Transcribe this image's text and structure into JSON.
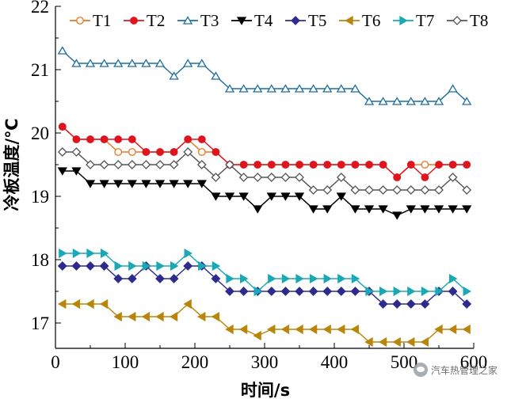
{
  "chart_data": {
    "type": "line",
    "title": "",
    "xlabel": "时间/s",
    "ylabel": "冷板温度/℃",
    "xlim": [
      0,
      600
    ],
    "ylim": [
      16.6,
      22
    ],
    "xticks": [
      0,
      100,
      200,
      300,
      400,
      500,
      600
    ],
    "yticks": [
      17,
      18,
      19,
      20,
      21,
      22
    ],
    "grid": false,
    "legend_position": "top",
    "x": [
      10,
      30,
      50,
      70,
      90,
      110,
      130,
      150,
      170,
      190,
      210,
      230,
      250,
      270,
      290,
      310,
      330,
      350,
      370,
      390,
      410,
      430,
      450,
      470,
      490,
      510,
      530,
      550,
      570,
      590
    ],
    "series": [
      {
        "name": "T1",
        "marker": "circle-open",
        "color": "#e87722",
        "values": [
          20.1,
          19.9,
          19.9,
          19.9,
          19.7,
          19.7,
          19.7,
          19.7,
          19.7,
          19.9,
          19.7,
          19.7,
          19.5,
          19.5,
          19.5,
          19.5,
          19.5,
          19.5,
          19.5,
          19.5,
          19.5,
          19.5,
          19.5,
          19.5,
          19.3,
          19.5,
          19.5,
          19.5,
          19.5,
          19.5
        ]
      },
      {
        "name": "T2",
        "marker": "circle-filled",
        "color": "#e0141e",
        "values": [
          20.1,
          19.9,
          19.9,
          19.9,
          19.9,
          19.9,
          19.7,
          19.7,
          19.7,
          19.9,
          19.9,
          19.7,
          19.5,
          19.5,
          19.5,
          19.5,
          19.5,
          19.5,
          19.5,
          19.5,
          19.5,
          19.5,
          19.5,
          19.5,
          19.3,
          19.5,
          19.3,
          19.5,
          19.5,
          19.5
        ]
      },
      {
        "name": "T3",
        "marker": "triangle-open",
        "color": "#1f6f9c",
        "values": [
          21.3,
          21.1,
          21.1,
          21.1,
          21.1,
          21.1,
          21.1,
          21.1,
          20.9,
          21.1,
          21.1,
          20.9,
          20.7,
          20.7,
          20.7,
          20.7,
          20.7,
          20.7,
          20.7,
          20.7,
          20.7,
          20.7,
          20.5,
          20.5,
          20.5,
          20.5,
          20.5,
          20.5,
          20.7,
          20.5
        ]
      },
      {
        "name": "T4",
        "marker": "triangle-down-filled",
        "color": "#000000",
        "values": [
          19.4,
          19.4,
          19.2,
          19.2,
          19.2,
          19.2,
          19.2,
          19.2,
          19.2,
          19.2,
          19.2,
          19.0,
          19.0,
          19.0,
          18.8,
          19.0,
          19.0,
          19.0,
          18.8,
          18.8,
          19.0,
          18.8,
          18.8,
          18.8,
          18.7,
          18.8,
          18.8,
          18.8,
          18.8,
          18.8
        ]
      },
      {
        "name": "T5",
        "marker": "diamond-filled",
        "color": "#2e2b8f",
        "values": [
          17.9,
          17.9,
          17.9,
          17.9,
          17.7,
          17.7,
          17.9,
          17.7,
          17.7,
          17.9,
          17.9,
          17.7,
          17.5,
          17.5,
          17.5,
          17.5,
          17.5,
          17.5,
          17.5,
          17.5,
          17.5,
          17.5,
          17.5,
          17.3,
          17.3,
          17.3,
          17.3,
          17.5,
          17.5,
          17.3
        ]
      },
      {
        "name": "T6",
        "marker": "triangle-left-filled",
        "color": "#b8860b",
        "values": [
          17.3,
          17.3,
          17.3,
          17.3,
          17.1,
          17.1,
          17.1,
          17.1,
          17.1,
          17.3,
          17.1,
          17.1,
          16.9,
          16.9,
          16.8,
          16.9,
          16.9,
          16.9,
          16.9,
          16.9,
          16.9,
          16.9,
          16.7,
          16.7,
          16.7,
          16.7,
          16.7,
          16.9,
          16.9,
          16.9
        ]
      },
      {
        "name": "T7",
        "marker": "triangle-right-filled",
        "color": "#1aa8b5",
        "values": [
          18.1,
          18.1,
          18.1,
          18.1,
          17.9,
          17.9,
          17.9,
          17.9,
          17.9,
          18.1,
          17.9,
          17.9,
          17.7,
          17.7,
          17.5,
          17.7,
          17.7,
          17.7,
          17.7,
          17.7,
          17.7,
          17.7,
          17.5,
          17.5,
          17.5,
          17.5,
          17.5,
          17.5,
          17.7,
          17.5
        ]
      },
      {
        "name": "T8",
        "marker": "diamond-open",
        "color": "#555555",
        "values": [
          19.7,
          19.7,
          19.5,
          19.5,
          19.5,
          19.5,
          19.5,
          19.5,
          19.5,
          19.7,
          19.5,
          19.3,
          19.5,
          19.3,
          19.3,
          19.3,
          19.3,
          19.3,
          19.1,
          19.1,
          19.3,
          19.1,
          19.1,
          19.1,
          19.1,
          19.1,
          19.1,
          19.1,
          19.3,
          19.1
        ]
      }
    ]
  },
  "watermark": {
    "icon": "wechat-logo-icon",
    "text": "汽车热管理之家"
  }
}
